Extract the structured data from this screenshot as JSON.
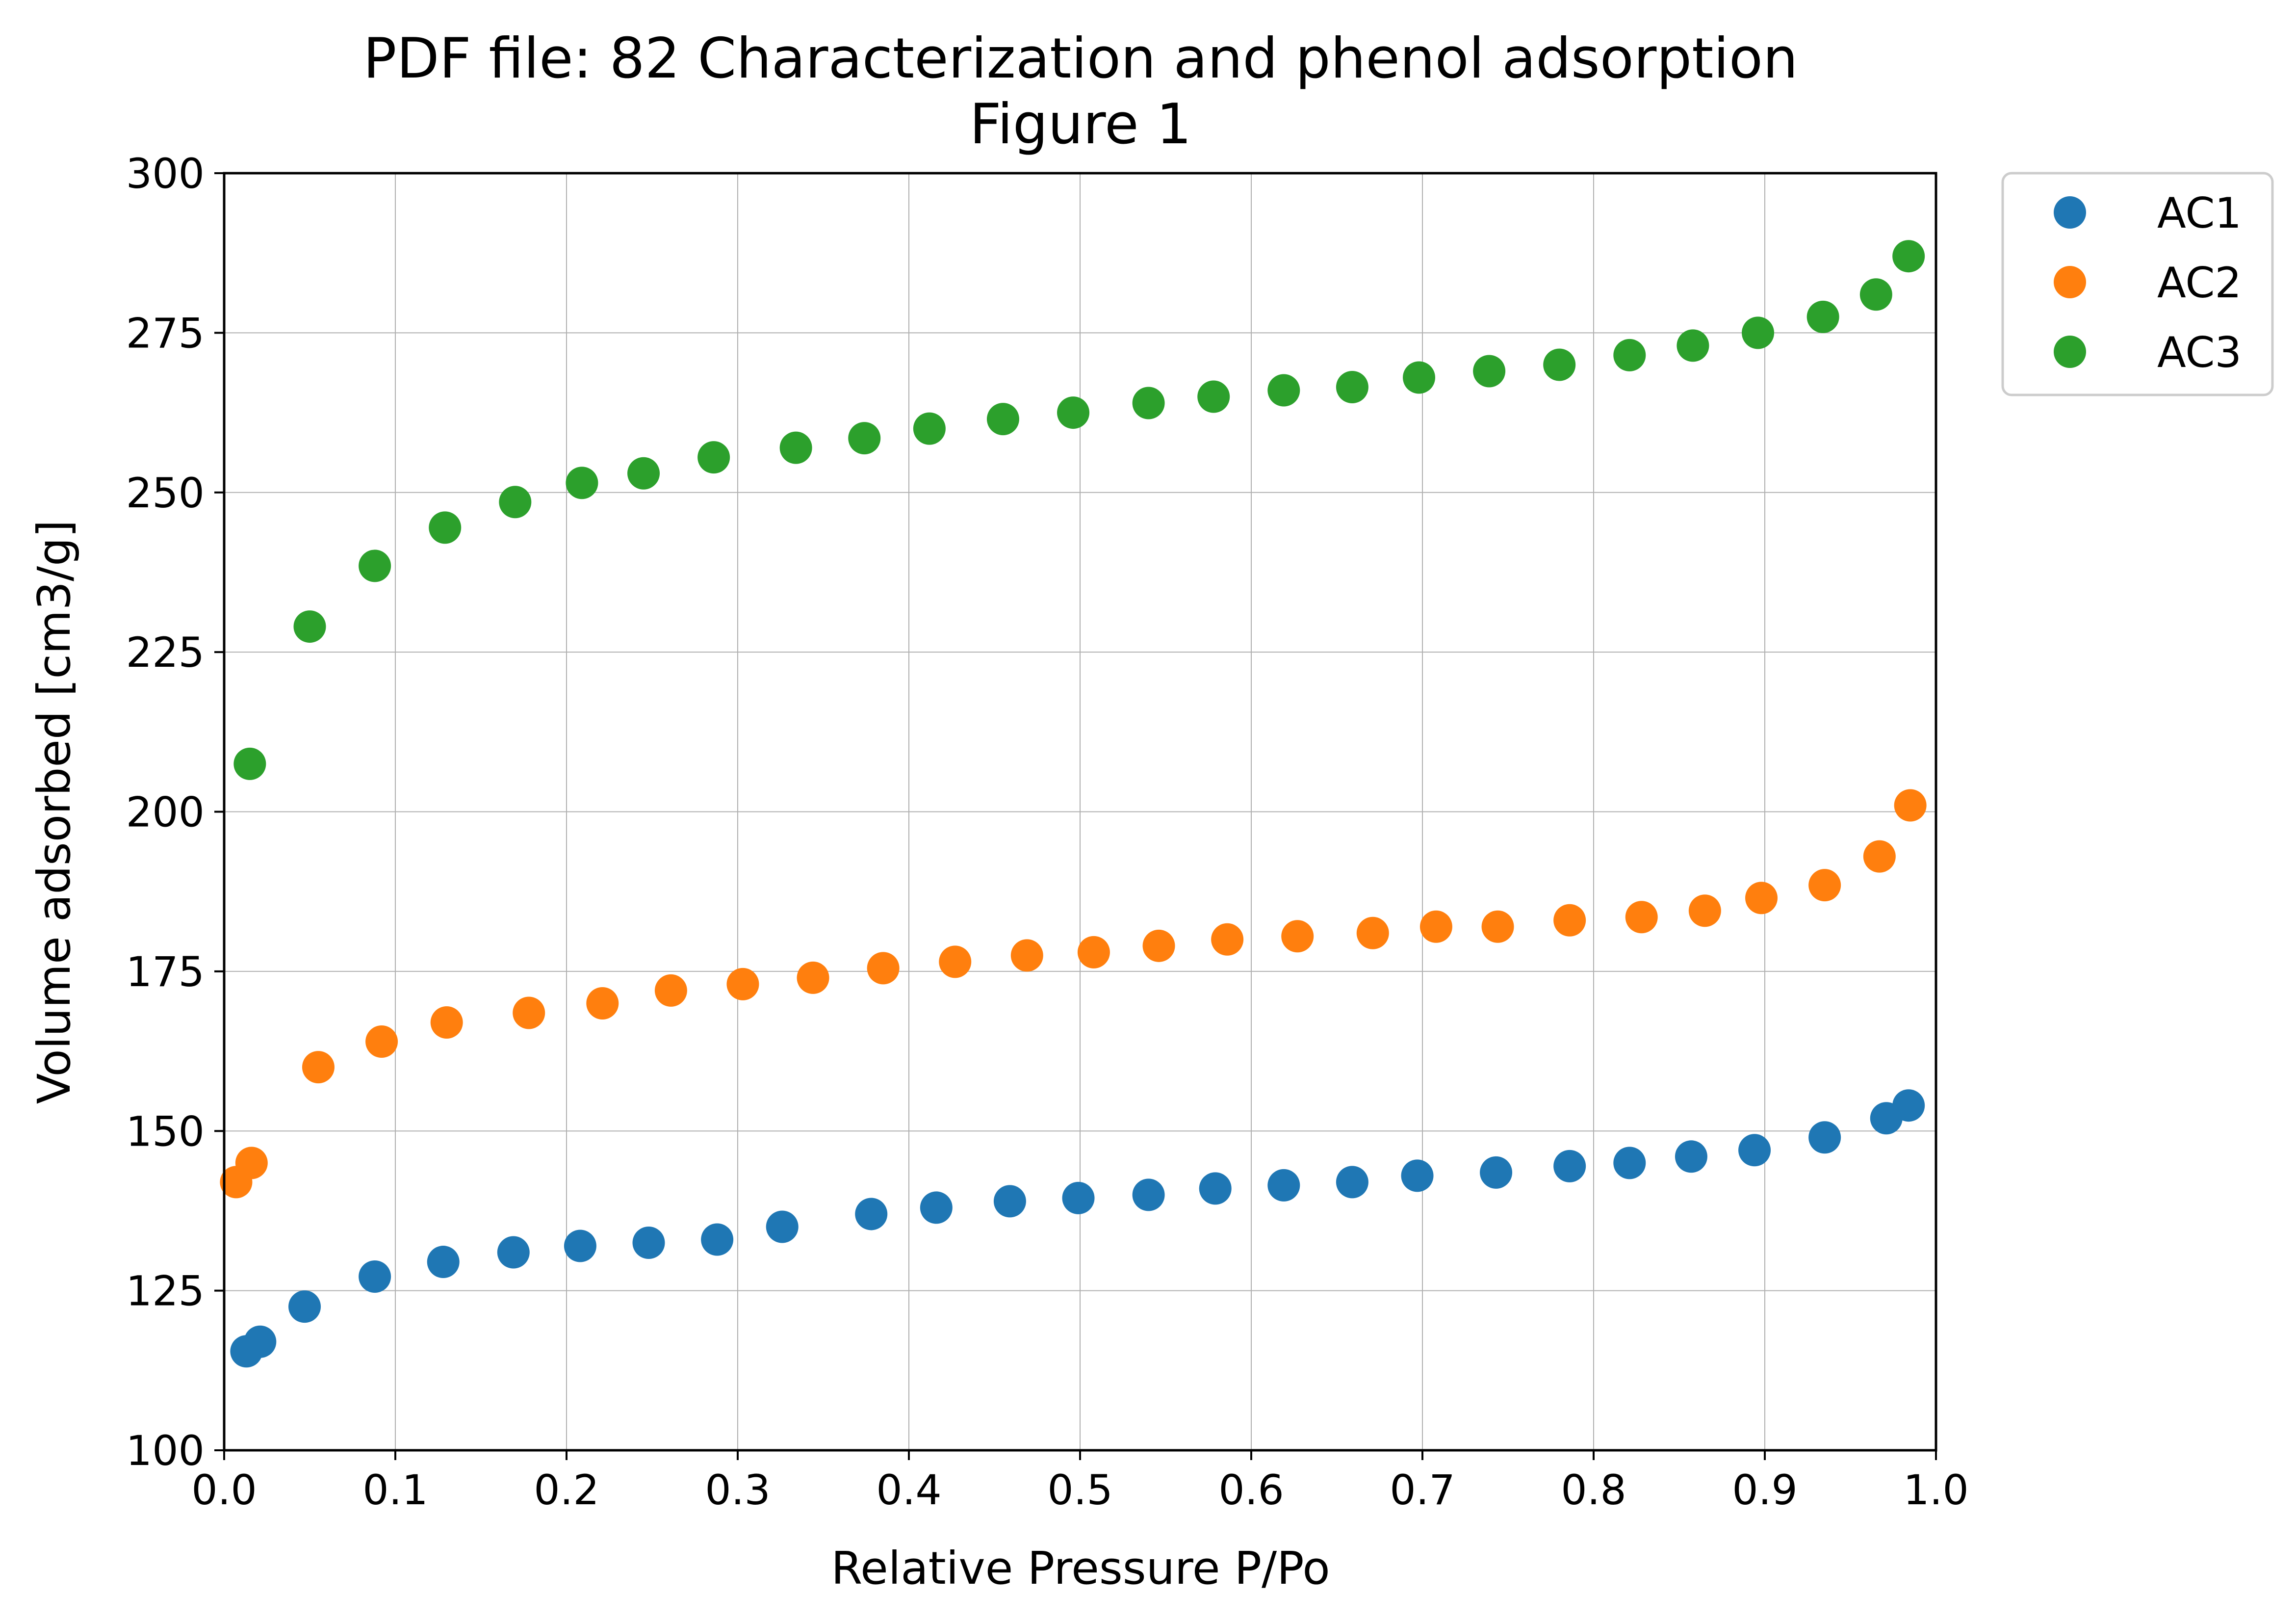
{
  "chart_data": {
    "type": "scatter",
    "title_line1": "PDF file: 82 Characterization and phenol adsorption",
    "title_line2": "Figure 1",
    "xlabel": "Relative Pressure P/Po",
    "ylabel": "Volume adsorbed [cm3/g]",
    "xlim": [
      0.0,
      1.0
    ],
    "ylim": [
      100,
      300
    ],
    "x_ticks": [
      "0.0",
      "0.1",
      "0.2",
      "0.3",
      "0.4",
      "0.5",
      "0.6",
      "0.7",
      "0.8",
      "0.9",
      "1.0"
    ],
    "y_ticks": [
      "100",
      "125",
      "150",
      "175",
      "200",
      "225",
      "250",
      "275",
      "300"
    ],
    "x_tick_values": [
      0.0,
      0.1,
      0.2,
      0.3,
      0.4,
      0.5,
      0.6,
      0.7,
      0.8,
      0.9,
      1.0
    ],
    "y_tick_values": [
      100,
      125,
      150,
      175,
      200,
      225,
      250,
      275,
      300
    ],
    "grid": true,
    "legend_position": "outside-top-right",
    "series": [
      {
        "name": "AC1",
        "color": "#1f77b4",
        "x": [
          0.013,
          0.021,
          0.047,
          0.088,
          0.128,
          0.169,
          0.208,
          0.248,
          0.288,
          0.326,
          0.378,
          0.416,
          0.459,
          0.499,
          0.54,
          0.579,
          0.619,
          0.659,
          0.697,
          0.743,
          0.786,
          0.821,
          0.857,
          0.894,
          0.935,
          0.971,
          0.984
        ],
        "y": [
          115.5,
          117.0,
          122.5,
          127.2,
          129.5,
          131.0,
          132.0,
          132.5,
          133.0,
          135.0,
          137.0,
          138.0,
          139.0,
          139.5,
          140.0,
          141.0,
          141.5,
          142.0,
          143.0,
          143.5,
          144.5,
          145.0,
          146.0,
          147.0,
          149.0,
          152.0,
          154.0
        ]
      },
      {
        "name": "AC2",
        "color": "#ff7f0e",
        "x": [
          0.007,
          0.016,
          0.055,
          0.092,
          0.13,
          0.178,
          0.221,
          0.261,
          0.303,
          0.344,
          0.385,
          0.427,
          0.469,
          0.508,
          0.546,
          0.586,
          0.627,
          0.671,
          0.708,
          0.744,
          0.786,
          0.828,
          0.865,
          0.898,
          0.935,
          0.967,
          0.985
        ],
        "y": [
          142.0,
          145.0,
          160.0,
          164.0,
          167.0,
          168.5,
          170.0,
          172.0,
          173.0,
          174.0,
          175.5,
          176.5,
          177.5,
          178.0,
          179.0,
          180.0,
          180.5,
          181.0,
          182.0,
          182.0,
          183.0,
          183.5,
          184.5,
          186.5,
          188.5,
          193.0,
          201.0
        ]
      },
      {
        "name": "AC3",
        "color": "#2ca02c",
        "x": [
          0.015,
          0.05,
          0.088,
          0.129,
          0.17,
          0.209,
          0.245,
          0.286,
          0.334,
          0.374,
          0.412,
          0.455,
          0.496,
          0.54,
          0.578,
          0.619,
          0.659,
          0.698,
          0.739,
          0.78,
          0.821,
          0.858,
          0.896,
          0.934,
          0.965,
          0.984
        ],
        "y": [
          207.5,
          229.0,
          238.5,
          244.5,
          248.5,
          251.5,
          253.0,
          255.5,
          257.0,
          258.5,
          260.0,
          261.5,
          262.5,
          264.0,
          265.0,
          266.0,
          266.5,
          268.0,
          269.0,
          270.0,
          271.5,
          273.0,
          275.0,
          277.5,
          281.0,
          287.0
        ]
      }
    ]
  }
}
